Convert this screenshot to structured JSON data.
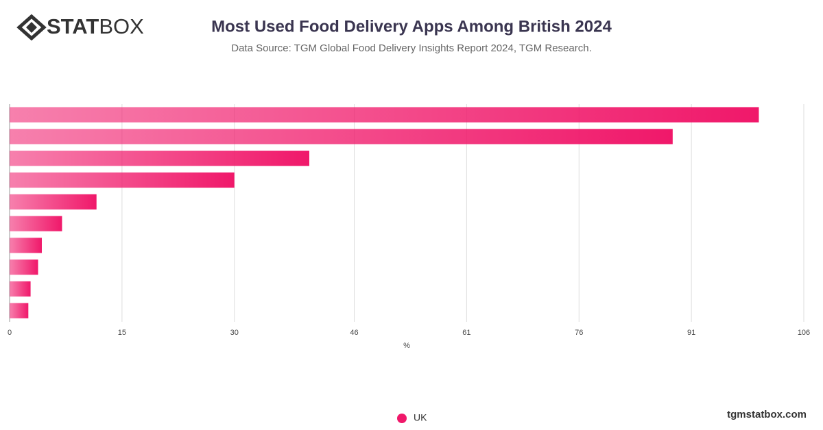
{
  "logo": {
    "bold": "STAT",
    "light": "BOX"
  },
  "footer": "tgmstatbox.com",
  "chart_data": {
    "type": "bar",
    "orientation": "horizontal",
    "title": "Most Used Food Delivery Apps Among British 2024",
    "subtitle": "Data Source: TGM Global Food Delivery Insights Report 2024, TGM Research.",
    "categories": [
      null,
      null,
      null,
      null,
      null,
      null,
      null,
      null,
      null,
      null
    ],
    "series": [
      {
        "name": "UK",
        "color": "#f0186a",
        "values": [
          100,
          88.5,
          40,
          30,
          11.6,
          7,
          4.3,
          3.8,
          2.8,
          2.5
        ]
      }
    ],
    "xlim": [
      0,
      106
    ],
    "xticks": [
      0,
      15,
      30,
      46,
      61,
      76,
      91,
      106
    ],
    "xlabel": "%",
    "grid": true,
    "legend": "bottom"
  }
}
